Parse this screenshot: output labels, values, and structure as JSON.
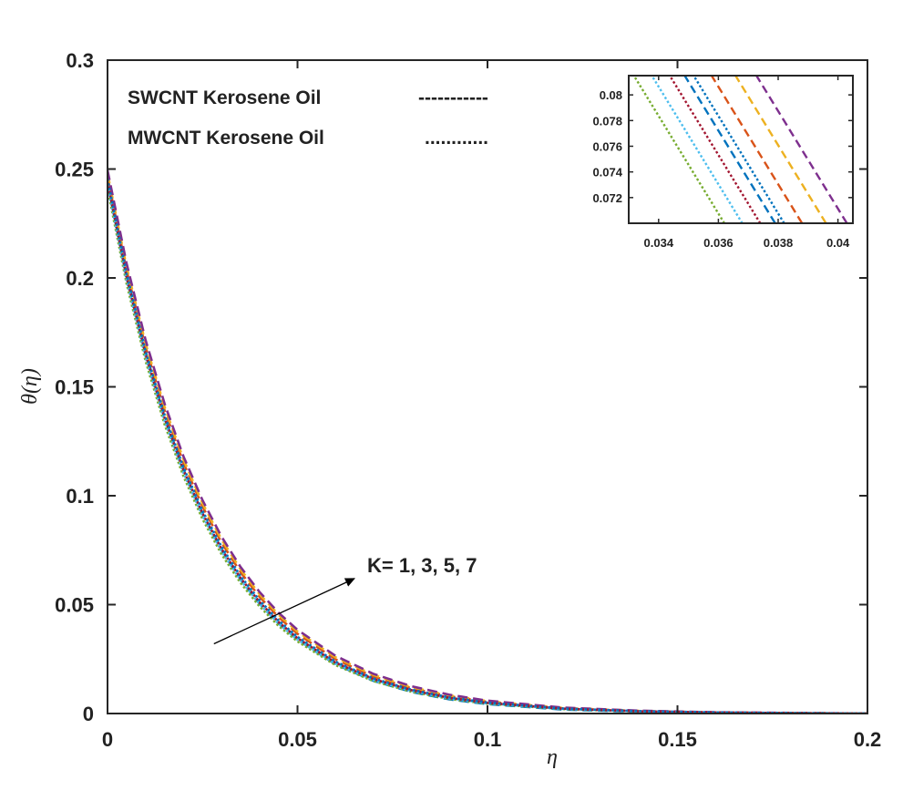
{
  "chart_data": {
    "type": "line",
    "title": "",
    "xlabel": "η",
    "ylabel": "θ(η)",
    "xlim": [
      0,
      0.2
    ],
    "ylim": [
      0,
      0.3
    ],
    "xticks": [
      0,
      0.05,
      0.1,
      0.15,
      0.2
    ],
    "xtick_labels": [
      "0",
      "0.05",
      "0.1",
      "0.15",
      "0.2"
    ],
    "yticks": [
      0,
      0.05,
      0.1,
      0.15,
      0.2,
      0.25,
      0.3
    ],
    "ytick_labels": [
      "0",
      "0.05",
      "0.1",
      "0.15",
      "0.2",
      "0.25",
      "0.3"
    ],
    "legend": {
      "placement": "top-left",
      "entries": [
        {
          "label": "SWCNT Kerosene Oil",
          "marker": "-----------"
        },
        {
          "label": "MWCNT Kerosene Oil",
          "marker": "............"
        }
      ]
    },
    "annotation": {
      "text": "K= 1, 3, 5, 7",
      "arrow_from": [
        0.028,
        0.032
      ],
      "arrow_to": [
        0.065,
        0.062
      ]
    },
    "x": [
      0,
      0.005,
      0.01,
      0.015,
      0.02,
      0.025,
      0.03,
      0.035,
      0.04,
      0.045,
      0.05,
      0.06,
      0.07,
      0.08,
      0.09,
      0.1,
      0.12,
      0.14,
      0.16,
      0.18,
      0.2
    ],
    "series": [
      {
        "name": "SWCNT K=1",
        "style": "dashed",
        "color": "#0072BD",
        "values": [
          0.245,
          0.202,
          0.166,
          0.136,
          0.112,
          0.0918,
          0.0753,
          0.0617,
          0.0505,
          0.0414,
          0.0339,
          0.0226,
          0.015,
          0.0099,
          0.0065,
          0.0043,
          0.0018,
          0.0008,
          0.0003,
          0.0001,
          0.0
        ]
      },
      {
        "name": "SWCNT K=3",
        "style": "dashed",
        "color": "#D95319",
        "values": [
          0.2465,
          0.2037,
          0.1684,
          0.1392,
          0.115,
          0.095,
          0.0785,
          0.0649,
          0.0536,
          0.0443,
          0.0366,
          0.0249,
          0.017,
          0.0116,
          0.0079,
          0.0054,
          0.0024,
          0.0011,
          0.0005,
          0.0002,
          0.0
        ]
      },
      {
        "name": "SWCNT K=5",
        "style": "dashed",
        "color": "#EDB120",
        "values": [
          0.248,
          0.2053,
          0.17,
          0.1408,
          0.1166,
          0.0965,
          0.0799,
          0.0662,
          0.0548,
          0.0454,
          0.0376,
          0.0258,
          0.0177,
          0.0121,
          0.0083,
          0.0057,
          0.0026,
          0.0012,
          0.0005,
          0.0002,
          0.0
        ]
      },
      {
        "name": "SWCNT K=7",
        "style": "dashed",
        "color": "#7E2F8E",
        "values": [
          0.2495,
          0.2069,
          0.1716,
          0.1423,
          0.118,
          0.0979,
          0.0812,
          0.0673,
          0.0558,
          0.0463,
          0.0384,
          0.0265,
          0.0182,
          0.0125,
          0.0086,
          0.0059,
          0.0027,
          0.0013,
          0.0006,
          0.0003,
          0.0
        ]
      },
      {
        "name": "MWCNT K=1",
        "style": "dotted",
        "color": "#77AC30",
        "values": [
          0.241,
          0.1976,
          0.162,
          0.1328,
          0.1089,
          0.0893,
          0.0732,
          0.06,
          0.0492,
          0.0403,
          0.0331,
          0.0222,
          0.0149,
          0.01,
          0.0067,
          0.0045,
          0.002,
          0.0009,
          0.0004,
          0.0002,
          0.0
        ]
      },
      {
        "name": "MWCNT K=3",
        "style": "dotted",
        "color": "#4DBEEE",
        "values": [
          0.2425,
          0.1992,
          0.1636,
          0.1344,
          0.1104,
          0.0907,
          0.0745,
          0.0612,
          0.0503,
          0.0413,
          0.0339,
          0.0229,
          0.0154,
          0.0104,
          0.007,
          0.0047,
          0.0021,
          0.001,
          0.0004,
          0.0002,
          0.0
        ]
      },
      {
        "name": "MWCNT K=5",
        "style": "dotted",
        "color": "#A2142F",
        "values": [
          0.244,
          0.2007,
          0.1651,
          0.1358,
          0.1117,
          0.0919,
          0.0756,
          0.0622,
          0.0512,
          0.0421,
          0.0346,
          0.0234,
          0.0158,
          0.0107,
          0.0072,
          0.0049,
          0.0022,
          0.001,
          0.0005,
          0.0002,
          0.0
        ]
      },
      {
        "name": "MWCNT K=7",
        "style": "dotted",
        "color": "#0072BD",
        "values": [
          0.2455,
          0.2022,
          0.1665,
          0.1371,
          0.1129,
          0.093,
          0.0766,
          0.0631,
          0.052,
          0.0428,
          0.0352,
          0.0238,
          0.0161,
          0.0109,
          0.0074,
          0.005,
          0.0023,
          0.0011,
          0.0005,
          0.0002,
          0.0
        ]
      }
    ],
    "inset": {
      "xlim": [
        0.033,
        0.0405
      ],
      "ylim": [
        0.07,
        0.0815
      ],
      "xticks": [
        0.034,
        0.036,
        0.038,
        0.04
      ],
      "xtick_labels": [
        "0.034",
        "0.036",
        "0.038",
        "0.04"
      ],
      "yticks": [
        0.072,
        0.074,
        0.076,
        0.078,
        0.08
      ],
      "ytick_labels": [
        "0.072",
        "0.074",
        "0.076",
        "0.078",
        "0.08"
      ],
      "slope": -3.8,
      "lines": [
        {
          "color": "#77AC30",
          "style": "dotted",
          "x_at_ymin": 0.0362
        },
        {
          "color": "#4DBEEE",
          "style": "dotted",
          "x_at_ymin": 0.0368
        },
        {
          "color": "#A2142F",
          "style": "dotted",
          "x_at_ymin": 0.0374
        },
        {
          "color": "#0072BD",
          "style": "dashed",
          "x_at_ymin": 0.0379
        },
        {
          "color": "#0072BD",
          "style": "dotted",
          "x_at_ymin": 0.0382
        },
        {
          "color": "#D95319",
          "style": "dashed",
          "x_at_ymin": 0.0388
        },
        {
          "color": "#EDB120",
          "style": "dashed",
          "x_at_ymin": 0.0396
        },
        {
          "color": "#7E2F8E",
          "style": "dashed",
          "x_at_ymin": 0.0403
        }
      ]
    }
  }
}
